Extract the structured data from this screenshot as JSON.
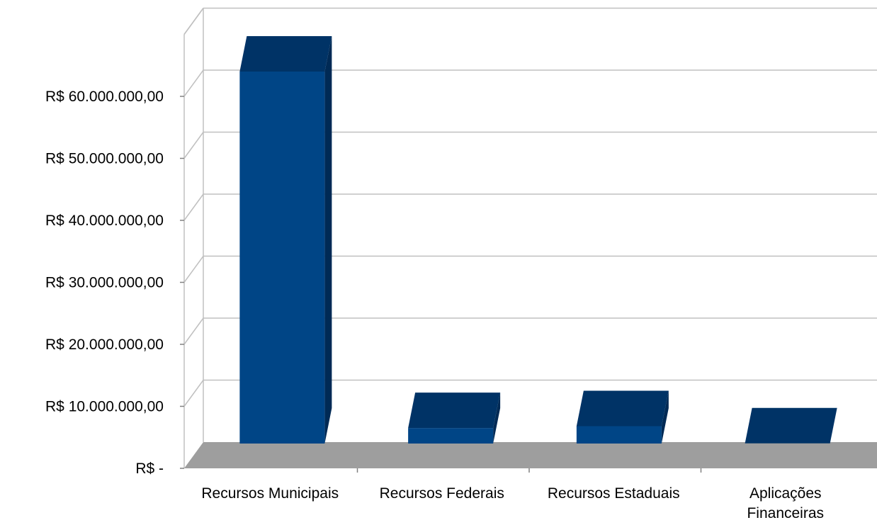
{
  "chart_data": {
    "type": "bar",
    "title": "",
    "xlabel": "",
    "ylabel": "",
    "categories": [
      "Recursos Municipais",
      "Recursos Federais",
      "Recursos Estaduais",
      "Aplicações Financeiras"
    ],
    "category_lines": [
      [
        "Recursos Municipais"
      ],
      [
        "Recursos Federais"
      ],
      [
        "Recursos Estaduais"
      ],
      [
        "Aplicações",
        "Financeiras"
      ]
    ],
    "values": [
      60000000,
      2500000,
      2800000,
      30000
    ],
    "ylim": [
      0,
      70000000
    ],
    "y_ticks": [
      0,
      10000000,
      20000000,
      30000000,
      40000000,
      50000000,
      60000000
    ],
    "y_tick_labels": [
      "R$ -",
      "R$ 10.000.000,00",
      "R$ 20.000.000,00",
      "R$ 30.000.000,00",
      "R$ 40.000.000,00",
      "R$ 50.000.000,00",
      "R$ 60.000.000,00"
    ],
    "grid": true,
    "style": "3d",
    "colors": {
      "bar_front": "#004586",
      "bar_top": "#003366",
      "bar_side": "#002a55",
      "floor": "#9e9e9e",
      "gridline": "#c0c0c0"
    }
  }
}
